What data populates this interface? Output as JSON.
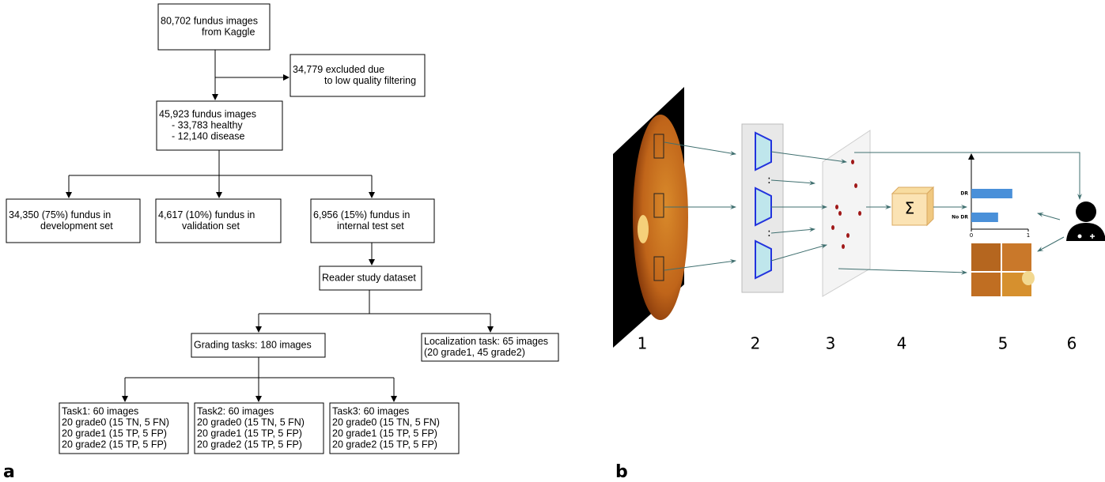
{
  "panel_a": {
    "label": "a",
    "nodes": [
      {
        "lines": [
          "80,702 fundus images",
          "from Kaggle"
        ]
      },
      {
        "lines": [
          "34,779 excluded due",
          "to low quality filtering"
        ]
      },
      {
        "lines": [
          "45,923 fundus images",
          "- 33,783 healthy",
          "- 12,140 disease"
        ]
      },
      {
        "lines": [
          "34,350 (75%) fundus in",
          "development set"
        ]
      },
      {
        "lines": [
          "4,617 (10%) fundus in",
          "validation set"
        ]
      },
      {
        "lines": [
          "6,956 (15%) fundus in",
          "internal test set"
        ]
      },
      {
        "lines": [
          "Reader study dataset"
        ]
      },
      {
        "lines": [
          "Grading tasks: 180 images"
        ]
      },
      {
        "lines": [
          "Localization task: 65 images",
          "(20 grade1, 45 grade2)"
        ]
      },
      {
        "lines": [
          "Task1: 60 images",
          "20 grade0 (15 TN, 5 FN)",
          "20 grade1 (15 TP, 5 FP)",
          "20 grade2 (15 TP, 5 FP)"
        ]
      },
      {
        "lines": [
          "Task2: 60 images",
          "20 grade0 (15 TN, 5 FN)",
          "20 grade1 (15 TP, 5 FP)",
          "20 grade2 (15 TP, 5 FP)"
        ]
      },
      {
        "lines": [
          "Task3: 60 images",
          "20 grade0 (15 TN, 5 FN)",
          "20 grade1 (15 TP, 5 FP)",
          "20 grade2 (15 TP, 5 FP)"
        ]
      }
    ]
  },
  "panel_b": {
    "label": "b",
    "steps": [
      "1",
      "2",
      "3",
      "4",
      "5",
      "6"
    ],
    "sum_symbol": "Σ",
    "chart": {
      "categories": [
        "DR",
        "No DR"
      ],
      "values": [
        0.72,
        0.47
      ],
      "xlim": [
        0,
        1
      ],
      "xticks": [
        0,
        1
      ],
      "color": "#4a90d9"
    }
  }
}
